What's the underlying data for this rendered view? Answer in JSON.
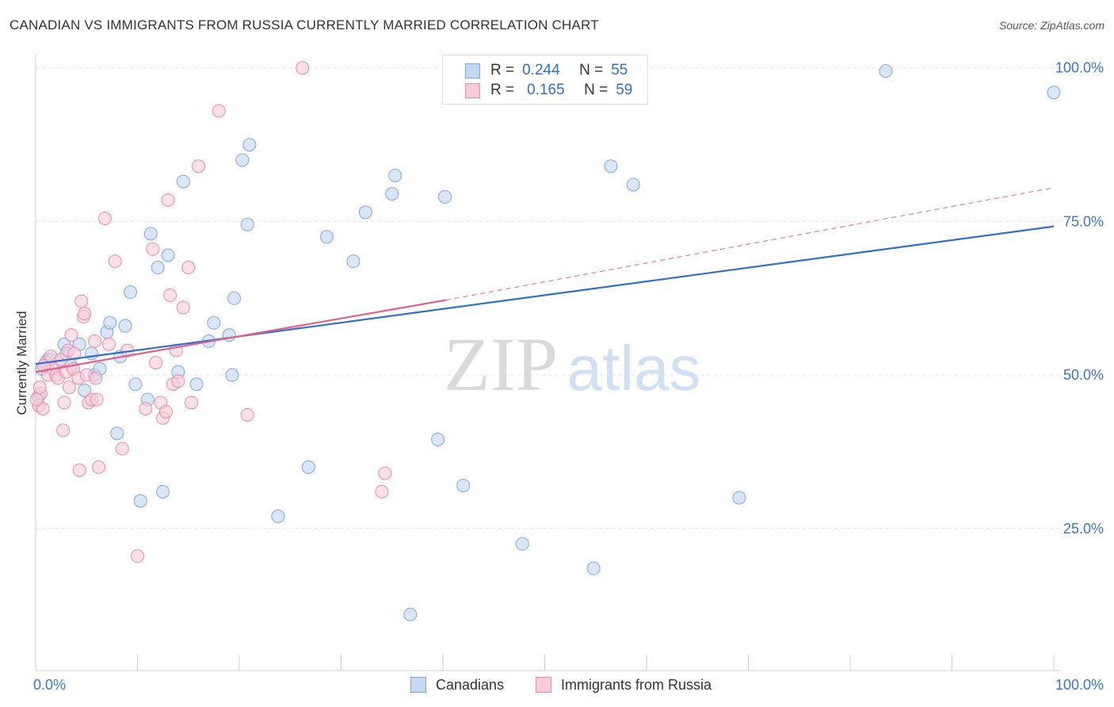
{
  "title": "CANADIAN VS IMMIGRANTS FROM RUSSIA CURRENTLY MARRIED CORRELATION CHART",
  "source": "Source: ZipAtlas.com",
  "watermark": {
    "zip": "ZIP",
    "atlas": "atlas"
  },
  "colors": {
    "blue_fill": "#c4d8f3",
    "blue_stroke": "#7ea6dc",
    "blue_line": "#2e6fcf",
    "pink_fill": "#f9cbd8",
    "pink_stroke": "#e88aa6",
    "pink_line": "#e0608a",
    "axis_label": "#3a74cc",
    "grid": "#e2e2e2"
  },
  "legend": {
    "blue": {
      "r_label": "R =",
      "r_value": "0.244",
      "n_label": "N =",
      "n_value": "55"
    },
    "pink": {
      "r_label": "R =",
      "r_value": "0.165",
      "n_label": "N =",
      "n_value": "59"
    }
  },
  "chart_data": {
    "type": "scatter",
    "title": "CANADIAN VS IMMIGRANTS FROM RUSSIA CURRENTLY MARRIED CORRELATION CHART",
    "xlabel": "",
    "ylabel": "Currently Married",
    "xlim": [
      0,
      100
    ],
    "ylim": [
      2,
      101
    ],
    "x_tick_labels": [
      "0.0%",
      "100.0%"
    ],
    "y_tick_labels": [
      {
        "value": 100,
        "label": "100.0%"
      },
      {
        "value": 75,
        "label": "75.0%"
      },
      {
        "value": 50,
        "label": "50.0%"
      },
      {
        "value": 25,
        "label": "25.0%"
      }
    ],
    "grid": true,
    "series": [
      {
        "name": "Canadians",
        "color": "#c4d8f3",
        "r": 0.244,
        "n": 55,
        "trend": {
          "x": [
            0,
            100
          ],
          "y": [
            51.8,
            74.2
          ]
        },
        "points": [
          [
            0.3,
            46.5
          ],
          [
            0.6,
            51
          ],
          [
            1.2,
            52.5
          ],
          [
            1.5,
            52.5
          ],
          [
            2.2,
            52
          ],
          [
            2.8,
            55
          ],
          [
            3.0,
            53.5
          ],
          [
            3.5,
            51.5
          ],
          [
            4.3,
            55
          ],
          [
            4.8,
            47.5
          ],
          [
            5.5,
            53.5
          ],
          [
            5.8,
            50
          ],
          [
            6.3,
            51
          ],
          [
            7.0,
            57
          ],
          [
            7.3,
            58.5
          ],
          [
            8.0,
            40.5
          ],
          [
            8.3,
            53
          ],
          [
            8.8,
            58
          ],
          [
            9.3,
            63.5
          ],
          [
            9.8,
            48.5
          ],
          [
            10.3,
            29.5
          ],
          [
            11.0,
            46
          ],
          [
            11.3,
            73
          ],
          [
            12.0,
            67.5
          ],
          [
            12.5,
            31
          ],
          [
            13.0,
            69.5
          ],
          [
            14.0,
            50.5
          ],
          [
            14.5,
            81.5
          ],
          [
            15.8,
            48.5
          ],
          [
            17.0,
            55.5
          ],
          [
            17.5,
            58.5
          ],
          [
            19.0,
            56.5
          ],
          [
            19.3,
            50
          ],
          [
            19.5,
            62.5
          ],
          [
            20.3,
            85
          ],
          [
            20.8,
            74.5
          ],
          [
            21.0,
            87.5
          ],
          [
            23.8,
            27
          ],
          [
            26.8,
            35
          ],
          [
            28.6,
            72.5
          ],
          [
            31.2,
            68.5
          ],
          [
            32.4,
            76.5
          ],
          [
            35.0,
            79.5
          ],
          [
            35.3,
            82.5
          ],
          [
            36.8,
            11
          ],
          [
            39.5,
            39.5
          ],
          [
            40.2,
            79
          ],
          [
            42.0,
            32
          ],
          [
            47.8,
            22.5
          ],
          [
            54.8,
            18.5
          ],
          [
            56.5,
            84
          ],
          [
            58.7,
            81
          ],
          [
            69.1,
            30
          ],
          [
            83.5,
            99.5
          ],
          [
            100,
            96
          ]
        ]
      },
      {
        "name": "Immigrants from Russia",
        "color": "#f9cbd8",
        "r": 0.165,
        "n": 59,
        "trend": {
          "x": [
            0,
            40.3
          ],
          "y": [
            50.5,
            62.2
          ]
        },
        "trend_dashed": {
          "x": [
            40.3,
            100
          ],
          "y": [
            62.2,
            80.5
          ]
        },
        "points": [
          [
            0.3,
            45
          ],
          [
            0.5,
            47
          ],
          [
            0.7,
            44.5
          ],
          [
            1.0,
            52
          ],
          [
            1.2,
            50
          ],
          [
            1.5,
            53
          ],
          [
            1.7,
            51
          ],
          [
            2.0,
            50
          ],
          [
            2.2,
            49.5
          ],
          [
            2.5,
            52.5
          ],
          [
            2.7,
            41
          ],
          [
            2.8,
            45.5
          ],
          [
            3.0,
            50.5
          ],
          [
            3.2,
            54
          ],
          [
            3.3,
            48
          ],
          [
            3.5,
            56.5
          ],
          [
            3.7,
            51
          ],
          [
            3.8,
            53.5
          ],
          [
            4.2,
            49.5
          ],
          [
            4.3,
            34.5
          ],
          [
            4.5,
            62
          ],
          [
            4.7,
            59.5
          ],
          [
            4.8,
            60
          ],
          [
            5.0,
            50
          ],
          [
            5.2,
            45.5
          ],
          [
            5.5,
            46
          ],
          [
            5.8,
            55.5
          ],
          [
            5.9,
            49.5
          ],
          [
            6.0,
            46
          ],
          [
            6.2,
            35
          ],
          [
            6.8,
            75.5
          ],
          [
            7.2,
            55
          ],
          [
            7.8,
            68.5
          ],
          [
            8.5,
            38
          ],
          [
            9.0,
            54
          ],
          [
            10.0,
            20.5
          ],
          [
            10.8,
            44.5
          ],
          [
            11.5,
            70.5
          ],
          [
            11.8,
            52
          ],
          [
            12.3,
            45.5
          ],
          [
            12.5,
            43
          ],
          [
            12.8,
            44
          ],
          [
            13.0,
            78.5
          ],
          [
            13.2,
            63
          ],
          [
            13.5,
            48.5
          ],
          [
            13.8,
            54
          ],
          [
            14.0,
            49
          ],
          [
            14.5,
            61
          ],
          [
            15.0,
            67.5
          ],
          [
            15.3,
            45.5
          ],
          [
            16.0,
            84
          ],
          [
            18.0,
            93
          ],
          [
            20.8,
            43.5
          ],
          [
            26.2,
            100
          ],
          [
            34.0,
            31
          ],
          [
            34.3,
            34
          ],
          [
            0.1,
            46
          ],
          [
            0.4,
            48
          ],
          [
            0.8,
            51.5
          ]
        ]
      }
    ]
  },
  "bottom_legend": {
    "items": [
      "Canadians",
      "Immigrants from Russia"
    ]
  }
}
